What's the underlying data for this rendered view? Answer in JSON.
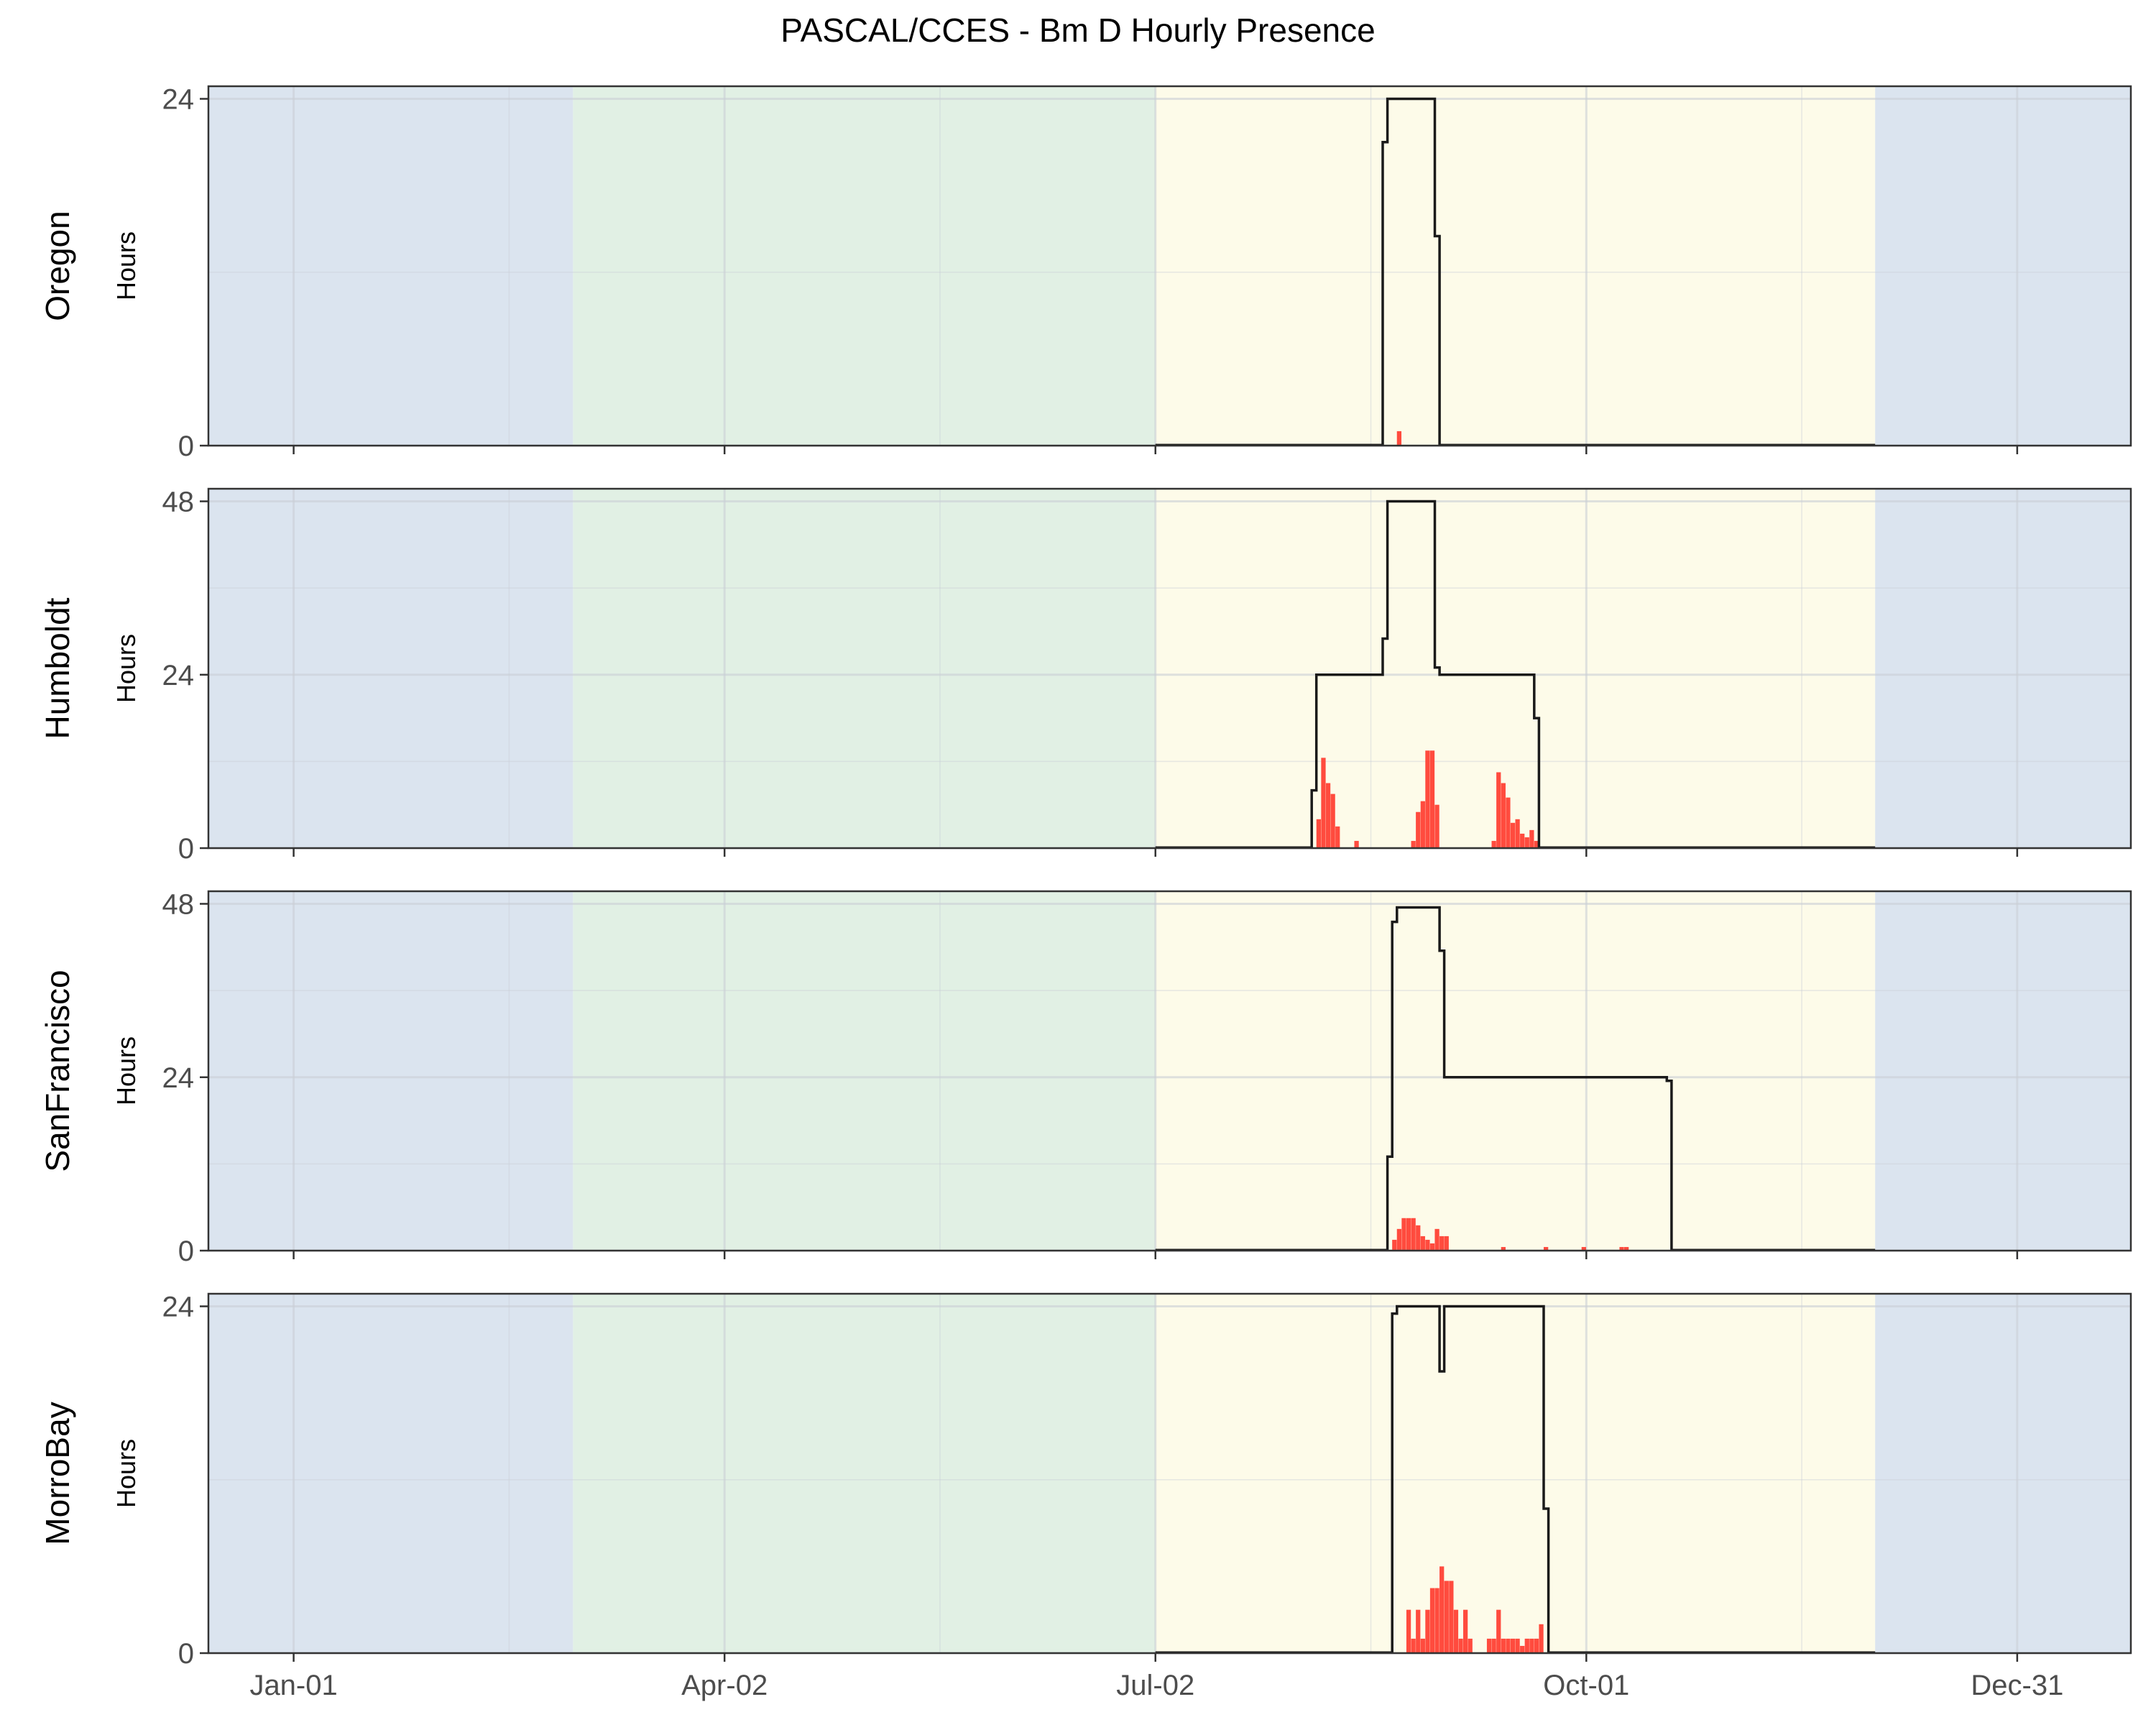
{
  "chart_data": {
    "type": "step-line-bar",
    "title": "PASCAL/CCES - Bm D Hourly Presence",
    "ylabel": "Hours",
    "x_ticks": [
      {
        "label": "Jan-01",
        "date": "2023-01-01"
      },
      {
        "label": "Apr-02",
        "date": "2023-04-02"
      },
      {
        "label": "Jul-02",
        "date": "2023-07-02"
      },
      {
        "label": "Oct-01",
        "date": "2023-10-01"
      },
      {
        "label": "Dec-31",
        "date": "2023-12-31"
      }
    ],
    "xlim": [
      "2022-12-14",
      "2024-01-24"
    ],
    "season_bands": [
      {
        "start": "2022-12-14",
        "end": "2023-03-01",
        "color": "#dbe4ef"
      },
      {
        "start": "2023-03-01",
        "end": "2023-07-02",
        "color": "#e1f0e4"
      },
      {
        "start": "2023-07-02",
        "end": "2023-12-01",
        "color": "#fdfbe9"
      },
      {
        "start": "2023-12-01",
        "end": "2024-01-24",
        "color": "#dbe4ef"
      }
    ],
    "colors": {
      "effort_line": "#1a1a1a",
      "presence_bar": "#ff4b3e",
      "grid": "#c9cfd6",
      "border": "#333333"
    },
    "panels": [
      {
        "name": "Oregon",
        "ylim": [
          0,
          24
        ],
        "yticks": [
          0,
          24
        ],
        "effort": [
          {
            "x": "2023-08-19",
            "y": 0
          },
          {
            "x": "2023-08-19",
            "y": 21
          },
          {
            "x": "2023-08-20",
            "y": 21
          },
          {
            "x": "2023-08-20",
            "y": 24
          },
          {
            "x": "2023-08-30",
            "y": 24
          },
          {
            "x": "2023-08-30",
            "y": 14.5
          },
          {
            "x": "2023-08-31",
            "y": 14.5
          },
          {
            "x": "2023-08-31",
            "y": 0
          }
        ],
        "presence": [
          {
            "date": "2023-08-22",
            "hours": 1
          }
        ]
      },
      {
        "name": "Humboldt",
        "ylim": [
          0,
          48
        ],
        "yticks": [
          0,
          24,
          48
        ],
        "effort": [
          {
            "x": "2023-08-04",
            "y": 0
          },
          {
            "x": "2023-08-04",
            "y": 8
          },
          {
            "x": "2023-08-05",
            "y": 8
          },
          {
            "x": "2023-08-05",
            "y": 24
          },
          {
            "x": "2023-08-19",
            "y": 24
          },
          {
            "x": "2023-08-19",
            "y": 29
          },
          {
            "x": "2023-08-20",
            "y": 29
          },
          {
            "x": "2023-08-20",
            "y": 48
          },
          {
            "x": "2023-08-30",
            "y": 48
          },
          {
            "x": "2023-08-30",
            "y": 25
          },
          {
            "x": "2023-08-31",
            "y": 25
          },
          {
            "x": "2023-08-31",
            "y": 24
          },
          {
            "x": "2023-09-20",
            "y": 24
          },
          {
            "x": "2023-09-20",
            "y": 18
          },
          {
            "x": "2023-09-21",
            "y": 18
          },
          {
            "x": "2023-09-21",
            "y": 0
          }
        ],
        "presence": [
          {
            "date": "2023-08-05",
            "hours": 4
          },
          {
            "date": "2023-08-06",
            "hours": 12.5
          },
          {
            "date": "2023-08-07",
            "hours": 9
          },
          {
            "date": "2023-08-08",
            "hours": 7.5
          },
          {
            "date": "2023-08-09",
            "hours": 3
          },
          {
            "date": "2023-08-13",
            "hours": 1
          },
          {
            "date": "2023-08-25",
            "hours": 1
          },
          {
            "date": "2023-08-26",
            "hours": 5
          },
          {
            "date": "2023-08-27",
            "hours": 6.5
          },
          {
            "date": "2023-08-28",
            "hours": 13.5
          },
          {
            "date": "2023-08-29",
            "hours": 13.5
          },
          {
            "date": "2023-08-30",
            "hours": 6
          },
          {
            "date": "2023-09-11",
            "hours": 1
          },
          {
            "date": "2023-09-12",
            "hours": 10.5
          },
          {
            "date": "2023-09-13",
            "hours": 9
          },
          {
            "date": "2023-09-14",
            "hours": 7
          },
          {
            "date": "2023-09-15",
            "hours": 3.5
          },
          {
            "date": "2023-09-16",
            "hours": 4
          },
          {
            "date": "2023-09-17",
            "hours": 2
          },
          {
            "date": "2023-09-18",
            "hours": 1.5
          },
          {
            "date": "2023-09-19",
            "hours": 2.5
          },
          {
            "date": "2023-09-20",
            "hours": 1
          }
        ]
      },
      {
        "name": "SanFrancisco",
        "ylim": [
          0,
          48
        ],
        "yticks": [
          0,
          24,
          48
        ],
        "effort": [
          {
            "x": "2023-08-20",
            "y": 0
          },
          {
            "x": "2023-08-20",
            "y": 13
          },
          {
            "x": "2023-08-21",
            "y": 13
          },
          {
            "x": "2023-08-21",
            "y": 45.5
          },
          {
            "x": "2023-08-22",
            "y": 45.5
          },
          {
            "x": "2023-08-22",
            "y": 47.5
          },
          {
            "x": "2023-08-31",
            "y": 47.5
          },
          {
            "x": "2023-08-31",
            "y": 41.5
          },
          {
            "x": "2023-09-01",
            "y": 41.5
          },
          {
            "x": "2023-09-01",
            "y": 24
          },
          {
            "x": "2023-10-18",
            "y": 24
          },
          {
            "x": "2023-10-18",
            "y": 23.5
          },
          {
            "x": "2023-10-19",
            "y": 23.5
          },
          {
            "x": "2023-10-19",
            "y": 0
          }
        ],
        "presence": [
          {
            "date": "2023-08-21",
            "hours": 1.5
          },
          {
            "date": "2023-08-22",
            "hours": 3
          },
          {
            "date": "2023-08-23",
            "hours": 4.5
          },
          {
            "date": "2023-08-24",
            "hours": 4.5
          },
          {
            "date": "2023-08-25",
            "hours": 4.5
          },
          {
            "date": "2023-08-26",
            "hours": 3.5
          },
          {
            "date": "2023-08-27",
            "hours": 2
          },
          {
            "date": "2023-08-28",
            "hours": 1.5
          },
          {
            "date": "2023-08-29",
            "hours": 1
          },
          {
            "date": "2023-08-30",
            "hours": 3
          },
          {
            "date": "2023-08-31",
            "hours": 2
          },
          {
            "date": "2023-09-01",
            "hours": 2
          },
          {
            "date": "2023-09-13",
            "hours": 0.5
          },
          {
            "date": "2023-09-22",
            "hours": 0.5
          },
          {
            "date": "2023-09-30",
            "hours": 0.5
          },
          {
            "date": "2023-10-08",
            "hours": 0.5
          },
          {
            "date": "2023-10-09",
            "hours": 0.5
          }
        ]
      },
      {
        "name": "MorroBay",
        "ylim": [
          0,
          24
        ],
        "yticks": [
          0,
          24
        ],
        "effort": [
          {
            "x": "2023-08-21",
            "y": 0
          },
          {
            "x": "2023-08-21",
            "y": 23.5
          },
          {
            "x": "2023-08-22",
            "y": 23.5
          },
          {
            "x": "2023-08-22",
            "y": 24
          },
          {
            "x": "2023-08-31",
            "y": 24
          },
          {
            "x": "2023-08-31",
            "y": 19.5
          },
          {
            "x": "2023-09-01",
            "y": 19.5
          },
          {
            "x": "2023-09-01",
            "y": 24
          },
          {
            "x": "2023-09-22",
            "y": 24
          },
          {
            "x": "2023-09-22",
            "y": 10
          },
          {
            "x": "2023-09-23",
            "y": 10
          },
          {
            "x": "2023-09-23",
            "y": 0
          }
        ],
        "presence": [
          {
            "date": "2023-08-24",
            "hours": 3
          },
          {
            "date": "2023-08-25",
            "hours": 1
          },
          {
            "date": "2023-08-26",
            "hours": 3
          },
          {
            "date": "2023-08-27",
            "hours": 1
          },
          {
            "date": "2023-08-28",
            "hours": 3
          },
          {
            "date": "2023-08-29",
            "hours": 4.5
          },
          {
            "date": "2023-08-30",
            "hours": 4.5
          },
          {
            "date": "2023-08-31",
            "hours": 6
          },
          {
            "date": "2023-09-01",
            "hours": 5
          },
          {
            "date": "2023-09-02",
            "hours": 5
          },
          {
            "date": "2023-09-03",
            "hours": 3
          },
          {
            "date": "2023-09-04",
            "hours": 1
          },
          {
            "date": "2023-09-05",
            "hours": 3
          },
          {
            "date": "2023-09-06",
            "hours": 1
          },
          {
            "date": "2023-09-10",
            "hours": 1
          },
          {
            "date": "2023-09-11",
            "hours": 1
          },
          {
            "date": "2023-09-12",
            "hours": 3
          },
          {
            "date": "2023-09-13",
            "hours": 1
          },
          {
            "date": "2023-09-14",
            "hours": 1
          },
          {
            "date": "2023-09-15",
            "hours": 1
          },
          {
            "date": "2023-09-16",
            "hours": 1
          },
          {
            "date": "2023-09-17",
            "hours": 0.5
          },
          {
            "date": "2023-09-18",
            "hours": 1
          },
          {
            "date": "2023-09-19",
            "hours": 1
          },
          {
            "date": "2023-09-20",
            "hours": 1
          },
          {
            "date": "2023-09-21",
            "hours": 2
          }
        ]
      }
    ]
  }
}
